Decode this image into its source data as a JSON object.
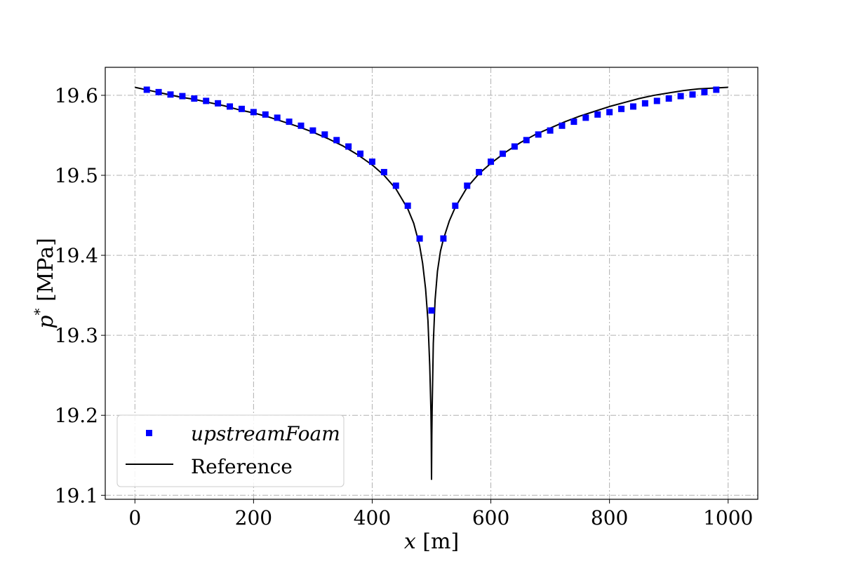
{
  "chart_data": {
    "type": "line",
    "xlabel": "x [m]",
    "ylabel": "p* [MPa]",
    "xlim": [
      -50,
      1050
    ],
    "ylim": [
      19.095,
      19.635
    ],
    "xticks": [
      0,
      200,
      400,
      600,
      800,
      1000
    ],
    "yticks": [
      19.1,
      19.2,
      19.3,
      19.4,
      19.5,
      19.6
    ],
    "xtick_labels": [
      "0",
      "200",
      "400",
      "600",
      "800",
      "1000"
    ],
    "ytick_labels": [
      "19.1",
      "19.2",
      "19.3",
      "19.4",
      "19.5",
      "19.6"
    ],
    "grid": true,
    "legend_position": "lower-left",
    "series": [
      {
        "name": "upstreamFoam",
        "kind": "scatter",
        "marker": "square",
        "color": "#0000ff",
        "x": [
          20,
          40,
          60,
          80,
          100,
          120,
          140,
          160,
          180,
          200,
          220,
          240,
          260,
          280,
          300,
          320,
          340,
          360,
          380,
          400,
          420,
          440,
          460,
          480,
          500,
          520,
          540,
          560,
          580,
          600,
          620,
          640,
          660,
          680,
          700,
          720,
          740,
          760,
          780,
          800,
          820,
          840,
          860,
          880,
          900,
          920,
          940,
          960,
          980
        ],
        "y": [
          19.607,
          19.604,
          19.601,
          19.599,
          19.596,
          19.593,
          19.59,
          19.586,
          19.583,
          19.579,
          19.576,
          19.572,
          19.567,
          19.562,
          19.556,
          19.551,
          19.544,
          19.536,
          19.527,
          19.517,
          19.504,
          19.487,
          19.462,
          19.421,
          19.331,
          19.421,
          19.462,
          19.487,
          19.504,
          19.517,
          19.527,
          19.536,
          19.544,
          19.551,
          19.556,
          19.562,
          19.567,
          19.572,
          19.576,
          19.579,
          19.583,
          19.586,
          19.59,
          19.593,
          19.596,
          19.599,
          19.601,
          19.604,
          19.607
        ]
      },
      {
        "name": "Reference",
        "kind": "line",
        "color": "#000000",
        "x": [
          0,
          25,
          50,
          75,
          100,
          125,
          150,
          175,
          200,
          225,
          250,
          275,
          300,
          325,
          350,
          375,
          400,
          420,
          440,
          460,
          470,
          480,
          485,
          490,
          494,
          497,
          499,
          499.5,
          500,
          500.5,
          501,
          503,
          506,
          510,
          515,
          520,
          530,
          540,
          560,
          580,
          600,
          625,
          650,
          675,
          700,
          725,
          750,
          775,
          800,
          825,
          850,
          875,
          900,
          925,
          950,
          975,
          1000
        ],
        "y": [
          19.61,
          19.606,
          19.602,
          19.598,
          19.595,
          19.591,
          19.587,
          19.582,
          19.578,
          19.573,
          19.567,
          19.561,
          19.554,
          19.546,
          19.537,
          19.526,
          19.513,
          19.5,
          19.483,
          19.458,
          19.44,
          19.412,
          19.39,
          19.358,
          19.318,
          19.262,
          19.205,
          19.175,
          19.12,
          19.175,
          19.205,
          19.29,
          19.344,
          19.38,
          19.405,
          19.42,
          19.443,
          19.46,
          19.485,
          19.502,
          19.515,
          19.529,
          19.541,
          19.551,
          19.559,
          19.567,
          19.574,
          19.58,
          19.586,
          19.591,
          19.596,
          19.6,
          19.603,
          19.606,
          19.608,
          19.609,
          19.61
        ]
      }
    ]
  },
  "legend": {
    "items": [
      {
        "label": "upstreamFoam",
        "marker": "square",
        "color": "#0000ff"
      },
      {
        "label": "Reference",
        "marker": "line",
        "color": "#000000"
      }
    ]
  }
}
